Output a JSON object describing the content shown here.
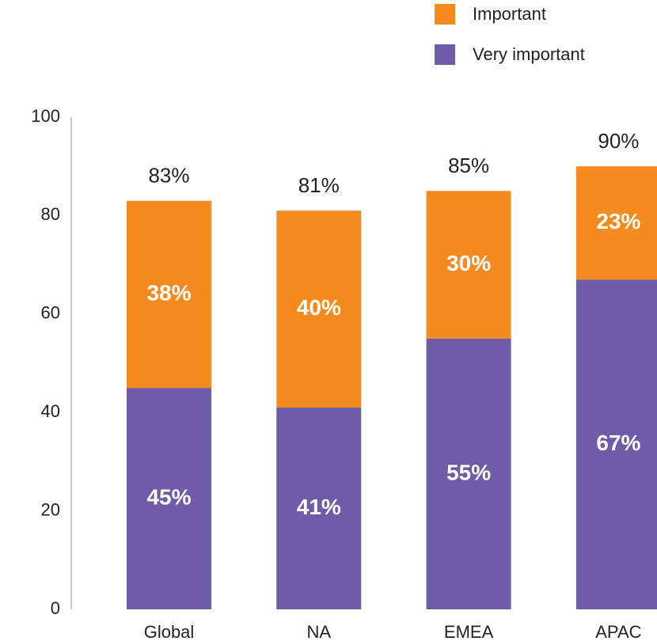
{
  "chart_data": {
    "type": "stacked_bar",
    "categories": [
      "Global",
      "NA",
      "EMEA",
      "APAC"
    ],
    "series": [
      {
        "name": "Very important",
        "color": "#6f5ca8",
        "values": [
          45,
          41,
          55,
          67
        ],
        "value_labels": [
          "45%",
          "41%",
          "55%",
          "67%"
        ]
      },
      {
        "name": "Important",
        "color": "#f58a1f",
        "values": [
          38,
          40,
          30,
          23
        ],
        "value_labels": [
          "38%",
          "40%",
          "30%",
          "23%"
        ]
      }
    ],
    "totals": [
      83,
      81,
      85,
      90
    ],
    "total_labels": [
      "83%",
      "81%",
      "85%",
      "90%"
    ],
    "ylim": [
      0,
      100
    ],
    "yticks": [
      0,
      20,
      40,
      60,
      80,
      100
    ],
    "grid": false,
    "legend": "top-right"
  }
}
